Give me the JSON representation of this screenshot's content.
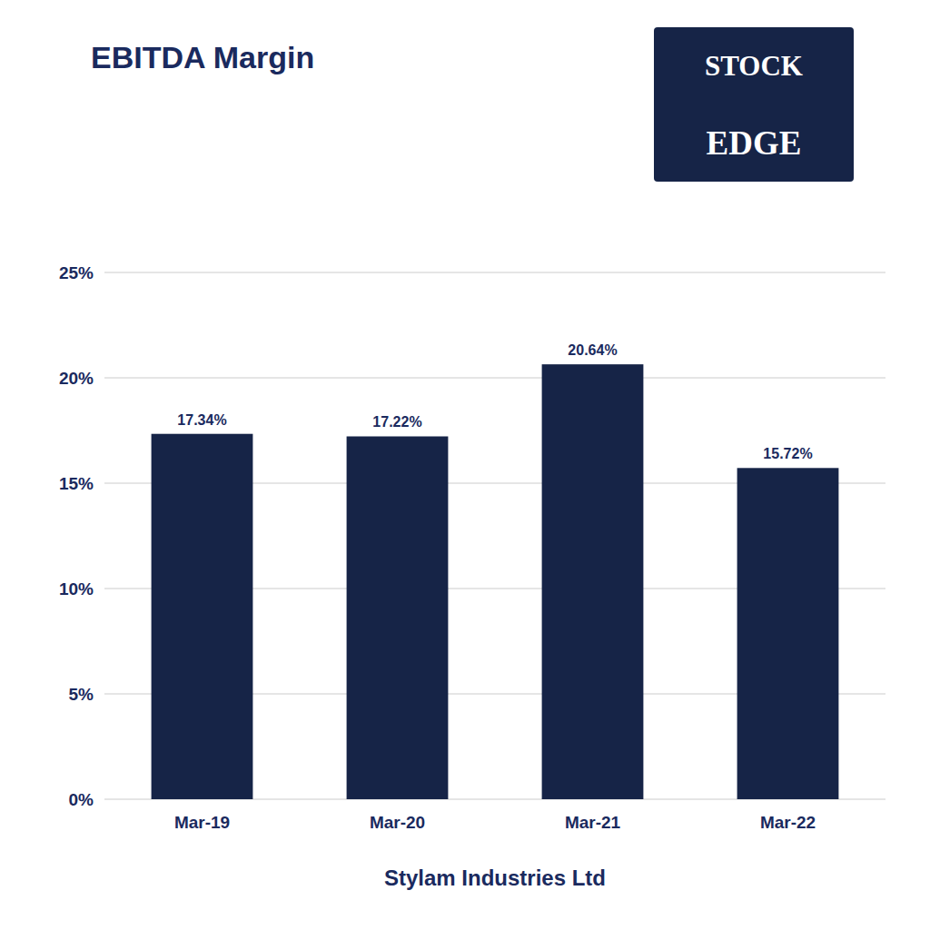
{
  "chart_data": {
    "type": "bar",
    "title": "EBITDA Margin",
    "x_label": "Stylam Industries Ltd",
    "categories": [
      "Mar-19",
      "Mar-20",
      "Mar-21",
      "Mar-22"
    ],
    "values": [
      17.34,
      17.22,
      20.64,
      15.72
    ],
    "value_labels": [
      "17.34%",
      "17.22%",
      "20.64%",
      "15.72%"
    ],
    "data_labels": true,
    "color": "#162447",
    "ylim": [
      0,
      25
    ],
    "yticks": [
      {
        "value": 0,
        "label": "0%"
      },
      {
        "value": 5,
        "label": "5%"
      },
      {
        "value": 10,
        "label": "10%"
      },
      {
        "value": 15,
        "label": "15%"
      },
      {
        "value": 20,
        "label": "20%"
      },
      {
        "value": 25,
        "label": "25%"
      }
    ],
    "grid": true,
    "annotations": [
      "STOCK",
      "EDGE"
    ]
  }
}
